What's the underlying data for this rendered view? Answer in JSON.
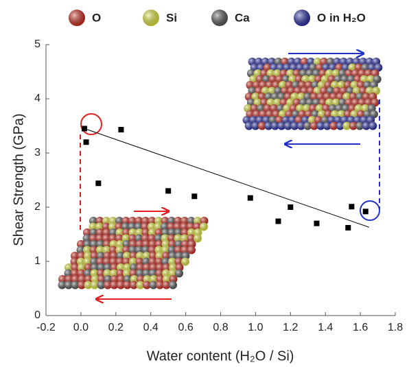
{
  "chart_data": {
    "type": "scatter",
    "legend": [
      {
        "name": "O",
        "color": "#d42a1e"
      },
      {
        "name": "Si",
        "color": "#e8ee3a"
      },
      {
        "name": "Ca",
        "color": "#5a5a5a"
      },
      {
        "name": "O in H₂O",
        "color": "#2a2fa8"
      }
    ],
    "x_label": "Water content (H₂O / Si)",
    "y_label": "Shear Strength (GPa)",
    "x": [
      0.02,
      0.03,
      0.1,
      0.23,
      0.5,
      0.65,
      0.97,
      1.13,
      1.2,
      1.35,
      1.53,
      1.55,
      1.63
    ],
    "values": [
      3.45,
      3.2,
      2.44,
      3.43,
      2.3,
      2.2,
      2.17,
      1.74,
      2.0,
      1.7,
      1.62,
      2.01,
      1.92
    ],
    "color": "#000000",
    "fit": {
      "x": [
        0.02,
        1.65
      ],
      "y": [
        3.45,
        1.63
      ],
      "color": "#000000"
    },
    "xlim": [
      -0.2,
      1.8
    ],
    "xticks": [
      -0.2,
      {
        "value": 0,
        "label": "0.0"
      },
      0.2,
      0.4,
      0.6,
      0.8,
      {
        "value": 1,
        "label": "1.0"
      },
      1.2,
      1.4,
      1.6,
      1.8
    ],
    "ylim": [
      0,
      5
    ],
    "yticks": [
      0,
      1,
      2,
      3,
      4,
      5
    ]
  }
}
